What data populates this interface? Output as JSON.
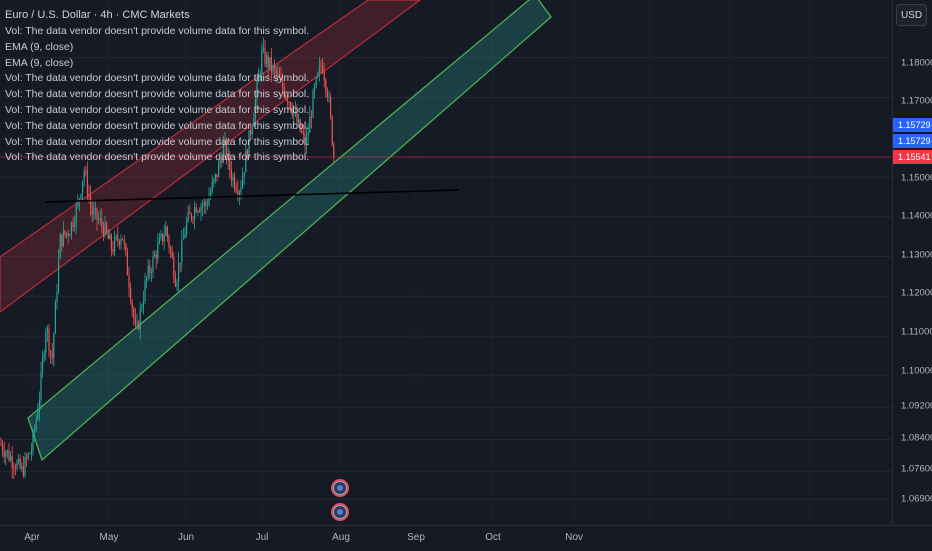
{
  "header": {
    "title": "Euro / U.S. Dollar · 4h · CMC Markets"
  },
  "indicators": [
    "Vol: The data vendor doesn't provide volume data for this symbol.",
    "EMA (9, close)",
    "EMA (9, close)",
    "Vol: The data vendor doesn't provide volume data for this symbol.",
    "Vol: The data vendor doesn't provide volume data for this symbol.",
    "Vol: The data vendor doesn't provide volume data for this symbol.",
    "Vol: The data vendor doesn't provide volume data for this symbol.",
    "Vol: The data vendor doesn't provide volume data for this symbol.",
    "Vol: The data vendor doesn't provide volume data for this symbol."
  ],
  "currency_button": "USD",
  "price_labels": [
    "1.18000",
    "1.17000",
    "1.15000",
    "1.14000",
    "1.13000",
    "1.12000",
    "1.11000",
    "1.10000",
    "1.09200",
    "1.08400",
    "1.07600",
    "1.06900"
  ],
  "price_tags": {
    "tag1": "1.15729",
    "tag2": "1.15729",
    "current": "1.15541"
  },
  "time_labels": [
    "Apr",
    "May",
    "Jun",
    "Jul",
    "Aug",
    "Sep",
    "Oct",
    "Nov"
  ],
  "colors": {
    "background": "#161a25",
    "bull": "#26a69a",
    "bear": "#ef5350",
    "red_channel": "#f23645",
    "green_channel": "#4caf50",
    "tag_blue": "#2962ff",
    "tag_red": "#f23645"
  },
  "chart_data": {
    "type": "candlestick",
    "symbol": "Euro / U.S. Dollar",
    "interval": "4h",
    "ylim": [
      1.0625,
      1.1945
    ],
    "x_labels": [
      "Apr",
      "May",
      "Jun",
      "Jul",
      "Aug",
      "Sep",
      "Oct",
      "Nov"
    ],
    "approx_path": [
      {
        "month": "Apr-start",
        "price": 1.083
      },
      {
        "month": "Apr-start",
        "price": 1.076
      },
      {
        "month": "Apr",
        "price": 1.089
      },
      {
        "month": "Apr",
        "price": 1.113
      },
      {
        "month": "Apr",
        "price": 1.134
      },
      {
        "month": "Apr",
        "price": 1.138
      },
      {
        "month": "Apr",
        "price": 1.15
      },
      {
        "month": "May",
        "price": 1.135
      },
      {
        "month": "May",
        "price": 1.13
      },
      {
        "month": "May",
        "price": 1.112
      },
      {
        "month": "May",
        "price": 1.125
      },
      {
        "month": "May",
        "price": 1.136
      },
      {
        "month": "Jun",
        "price": 1.132
      },
      {
        "month": "Jun",
        "price": 1.145
      },
      {
        "month": "Jun",
        "price": 1.15
      },
      {
        "month": "Jun",
        "price": 1.146
      },
      {
        "month": "Jun",
        "price": 1.16
      },
      {
        "month": "Jul",
        "price": 1.18
      },
      {
        "month": "Jul",
        "price": 1.172
      },
      {
        "month": "Jul",
        "price": 1.162
      },
      {
        "month": "Jul",
        "price": 1.174
      },
      {
        "month": "Jul",
        "price": 1.17
      },
      {
        "month": "Jul",
        "price": 1.178
      },
      {
        "month": "Aug-start",
        "price": 1.1554
      }
    ],
    "last_price": 1.15541,
    "drawings": {
      "horizontal_line_price": 1.145,
      "upper_channel": "red",
      "lower_channel": "green"
    }
  }
}
